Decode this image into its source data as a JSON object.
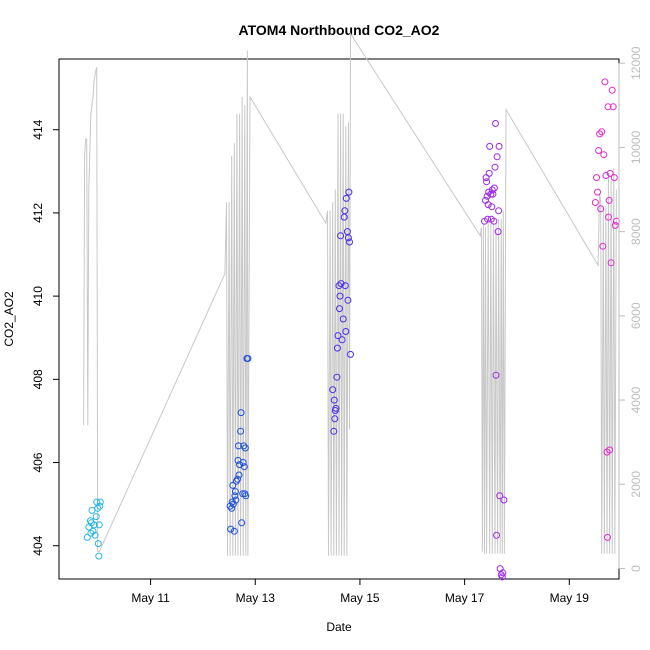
{
  "chart_data": {
    "type": "scatter",
    "title": "ATOM4 Northbound CO2_AO2",
    "xlabel": "Date",
    "ylabel": "CO2_AO2",
    "x_ticks": [
      "May 11",
      "May 13",
      "May 15",
      "May 17",
      "May 19"
    ],
    "x_tick_days": [
      11,
      13,
      15,
      17,
      19
    ],
    "xlim": [
      9.25,
      19.95
    ],
    "ylim": [
      403.2,
      415.7
    ],
    "y_ticks": [
      404,
      406,
      408,
      410,
      412,
      414
    ],
    "y2lim": [
      -250,
      12100
    ],
    "y2_ticks": [
      0,
      2000,
      4000,
      6000,
      8000,
      10000,
      12000
    ],
    "grid": false,
    "legend": "none",
    "colors": {
      "line": "#c8c8c8",
      "axis": "#000000",
      "right_axis": "#bdbdbd",
      "scatter_palette": [
        "#29b6e6",
        "#1e50dc",
        "#4a2ee6",
        "#9c28e6",
        "#e22ad0"
      ]
    },
    "series": [
      {
        "axis": "left",
        "color_index": 0,
        "points": [
          [
            9.79,
            404.2
          ],
          [
            9.82,
            404.45
          ],
          [
            9.85,
            404.6
          ],
          [
            9.86,
            404.3
          ],
          [
            9.87,
            404.55
          ],
          [
            9.88,
            404.85
          ],
          [
            9.9,
            404.35
          ],
          [
            9.92,
            404.5
          ],
          [
            9.94,
            404.25
          ],
          [
            9.96,
            404.7
          ],
          [
            9.97,
            405.05
          ],
          [
            9.99,
            404.9
          ],
          [
            10.0,
            404.05
          ],
          [
            10.01,
            403.75
          ],
          [
            10.02,
            404.5
          ],
          [
            10.03,
            404.95
          ],
          [
            10.04,
            405.05
          ]
        ]
      },
      {
        "axis": "left",
        "color_index": 1,
        "points": [
          [
            12.52,
            404.95
          ],
          [
            12.53,
            404.4
          ],
          [
            12.55,
            404.9
          ],
          [
            12.56,
            405.05
          ],
          [
            12.57,
            405.45
          ],
          [
            12.58,
            405.0
          ],
          [
            12.6,
            404.35
          ],
          [
            12.61,
            405.2
          ],
          [
            12.62,
            405.3
          ],
          [
            12.63,
            405.1
          ],
          [
            12.64,
            405.55
          ],
          [
            12.66,
            405.6
          ],
          [
            12.67,
            406.05
          ],
          [
            12.68,
            406.4
          ],
          [
            12.69,
            405.7
          ],
          [
            12.7,
            405.95
          ],
          [
            12.72,
            406.75
          ],
          [
            12.73,
            407.2
          ],
          [
            12.74,
            404.55
          ],
          [
            12.76,
            405.25
          ],
          [
            12.77,
            406.0
          ],
          [
            12.78,
            406.4
          ],
          [
            12.79,
            405.9
          ],
          [
            12.8,
            405.25
          ],
          [
            12.81,
            406.35
          ],
          [
            12.82,
            405.2
          ],
          [
            12.84,
            408.5
          ],
          [
            12.86,
            408.5
          ]
        ]
      },
      {
        "axis": "left",
        "color_index": 2,
        "points": [
          [
            14.48,
            407.75
          ],
          [
            14.5,
            406.75
          ],
          [
            14.51,
            407.5
          ],
          [
            14.52,
            407.05
          ],
          [
            14.53,
            407.25
          ],
          [
            14.54,
            407.3
          ],
          [
            14.56,
            408.05
          ],
          [
            14.57,
            408.75
          ],
          [
            14.58,
            409.05
          ],
          [
            14.6,
            410.25
          ],
          [
            14.61,
            409.7
          ],
          [
            14.62,
            410.0
          ],
          [
            14.63,
            411.45
          ],
          [
            14.64,
            410.3
          ],
          [
            14.66,
            408.95
          ],
          [
            14.68,
            409.45
          ],
          [
            14.7,
            411.9
          ],
          [
            14.71,
            412.05
          ],
          [
            14.72,
            410.25
          ],
          [
            14.73,
            409.15
          ],
          [
            14.74,
            412.35
          ],
          [
            14.76,
            411.55
          ],
          [
            14.77,
            409.9
          ],
          [
            14.78,
            411.4
          ],
          [
            14.79,
            412.5
          ],
          [
            14.8,
            411.3
          ],
          [
            14.82,
            408.6
          ]
        ]
      },
      {
        "axis": "left",
        "color_index": 3,
        "points": [
          [
            17.38,
            411.8
          ],
          [
            17.4,
            412.3
          ],
          [
            17.41,
            412.85
          ],
          [
            17.42,
            412.75
          ],
          [
            17.43,
            412.4
          ],
          [
            17.44,
            411.85
          ],
          [
            17.45,
            412.2
          ],
          [
            17.46,
            412.5
          ],
          [
            17.47,
            412.95
          ],
          [
            17.48,
            413.6
          ],
          [
            17.5,
            412.45
          ],
          [
            17.51,
            411.85
          ],
          [
            17.52,
            412.15
          ],
          [
            17.53,
            412.55
          ],
          [
            17.54,
            412.45
          ],
          [
            17.56,
            411.8
          ],
          [
            17.57,
            412.6
          ],
          [
            17.58,
            413.1
          ],
          [
            17.59,
            414.15
          ],
          [
            17.6,
            408.1
          ],
          [
            17.61,
            404.25
          ],
          [
            17.62,
            413.35
          ],
          [
            17.64,
            411.55
          ],
          [
            17.65,
            412.05
          ],
          [
            17.66,
            413.6
          ],
          [
            17.67,
            405.2
          ],
          [
            17.68,
            403.45
          ],
          [
            17.7,
            403.3
          ],
          [
            17.72,
            403.25
          ],
          [
            17.73,
            403.35
          ],
          [
            17.75,
            405.1
          ]
        ]
      },
      {
        "axis": "left",
        "color_index": 4,
        "points": [
          [
            19.5,
            412.25
          ],
          [
            19.52,
            412.85
          ],
          [
            19.54,
            412.5
          ],
          [
            19.56,
            413.5
          ],
          [
            19.58,
            413.9
          ],
          [
            19.6,
            412.1
          ],
          [
            19.62,
            413.95
          ],
          [
            19.64,
            411.2
          ],
          [
            19.66,
            413.4
          ],
          [
            19.68,
            415.15
          ],
          [
            19.7,
            412.9
          ],
          [
            19.72,
            406.25
          ],
          [
            19.73,
            404.2
          ],
          [
            19.74,
            414.55
          ],
          [
            19.75,
            411.9
          ],
          [
            19.76,
            412.3
          ],
          [
            19.77,
            406.3
          ],
          [
            19.78,
            412.95
          ],
          [
            19.8,
            410.8
          ],
          [
            19.82,
            414.95
          ],
          [
            19.84,
            414.55
          ],
          [
            19.86,
            412.85
          ],
          [
            19.88,
            411.7
          ],
          [
            19.9,
            411.8
          ]
        ]
      },
      {
        "axis": "right",
        "style": "line",
        "points": [
          [
            9.72,
            3400
          ],
          [
            9.74,
            9800
          ],
          [
            9.76,
            10200
          ],
          [
            9.78,
            10200
          ],
          [
            9.8,
            3400
          ],
          [
            9.82,
            9000
          ],
          [
            9.86,
            10800
          ],
          [
            9.9,
            11200
          ],
          [
            9.92,
            11600
          ],
          [
            9.95,
            11800
          ],
          [
            9.97,
            11900
          ],
          [
            9.99,
            400
          ],
          [
            10.02,
            400
          ],
          [
            12.42,
            7000
          ],
          [
            12.45,
            8700
          ],
          [
            12.47,
            300
          ],
          [
            12.5,
            8700
          ],
          [
            12.52,
            300
          ],
          [
            12.55,
            9800
          ],
          [
            12.57,
            300
          ],
          [
            12.6,
            10100
          ],
          [
            12.62,
            300
          ],
          [
            12.65,
            10800
          ],
          [
            12.67,
            300
          ],
          [
            12.7,
            10800
          ],
          [
            12.72,
            300
          ],
          [
            12.75,
            11200
          ],
          [
            12.77,
            300
          ],
          [
            12.8,
            11000
          ],
          [
            12.82,
            300
          ],
          [
            12.85,
            12300
          ],
          [
            12.86,
            300
          ],
          [
            12.9,
            11200
          ],
          [
            14.35,
            8200
          ],
          [
            14.38,
            8500
          ],
          [
            14.4,
            300
          ],
          [
            14.43,
            8500
          ],
          [
            14.45,
            300
          ],
          [
            14.48,
            8700
          ],
          [
            14.5,
            300
          ],
          [
            14.53,
            9000
          ],
          [
            14.55,
            300
          ],
          [
            14.58,
            10800
          ],
          [
            14.6,
            300
          ],
          [
            14.63,
            10800
          ],
          [
            14.65,
            300
          ],
          [
            14.68,
            10800
          ],
          [
            14.7,
            300
          ],
          [
            14.73,
            10500
          ],
          [
            14.75,
            300
          ],
          [
            14.78,
            10600
          ],
          [
            14.8,
            3300
          ],
          [
            14.82,
            12700
          ],
          [
            17.3,
            7900
          ],
          [
            17.32,
            8100
          ],
          [
            17.34,
            400
          ],
          [
            17.36,
            8200
          ],
          [
            17.38,
            350
          ],
          [
            17.4,
            8100
          ],
          [
            17.42,
            350
          ],
          [
            17.45,
            8200
          ],
          [
            17.48,
            350
          ],
          [
            17.5,
            8200
          ],
          [
            17.53,
            350
          ],
          [
            17.55,
            8200
          ],
          [
            17.58,
            350
          ],
          [
            17.6,
            8200
          ],
          [
            17.63,
            350
          ],
          [
            17.65,
            8300
          ],
          [
            17.68,
            350
          ],
          [
            17.7,
            8300
          ],
          [
            17.72,
            350
          ],
          [
            17.74,
            8500
          ],
          [
            17.76,
            350
          ],
          [
            17.79,
            10900
          ],
          [
            19.55,
            7200
          ],
          [
            19.58,
            8900
          ],
          [
            19.6,
            8700
          ],
          [
            19.62,
            350
          ],
          [
            19.65,
            8600
          ],
          [
            19.67,
            350
          ],
          [
            19.7,
            8600
          ],
          [
            19.72,
            350
          ],
          [
            19.75,
            9300
          ],
          [
            19.77,
            350
          ],
          [
            19.8,
            9200
          ],
          [
            19.82,
            350
          ],
          [
            19.85,
            9500
          ],
          [
            19.87,
            350
          ],
          [
            19.9,
            9000
          ]
        ]
      }
    ]
  }
}
